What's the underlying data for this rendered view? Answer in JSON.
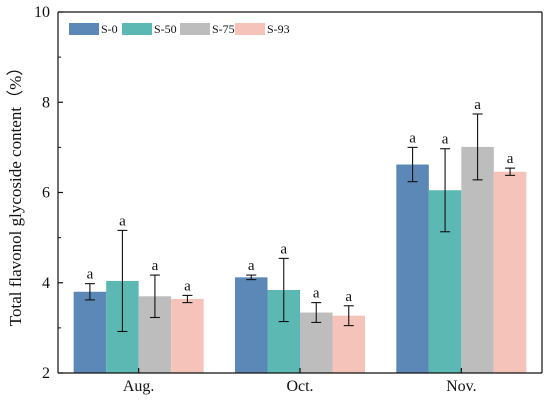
{
  "chart_data": {
    "type": "bar",
    "title": "",
    "xlabel": "",
    "ylabel": "Total flavonol glycoside content（%）",
    "ylim": [
      2,
      10
    ],
    "yticks": [
      2,
      4,
      6,
      8,
      10
    ],
    "categories": [
      "Aug.",
      "Oct.",
      "Nov."
    ],
    "legend": {
      "position": "top-left",
      "orientation": "horizontal"
    },
    "grid": false,
    "series": [
      {
        "name": "S-0",
        "color": "#5b88b6",
        "values": [
          3.8,
          4.12,
          6.62
        ],
        "errors": [
          0.18,
          0.05,
          0.38
        ],
        "labels": [
          "a",
          "a",
          "a"
        ]
      },
      {
        "name": "S-50",
        "color": "#5cb8b2",
        "values": [
          4.04,
          3.84,
          6.05
        ],
        "errors": [
          1.12,
          0.7,
          0.92
        ],
        "labels": [
          "a",
          "a",
          "a"
        ]
      },
      {
        "name": "S-75",
        "color": "#bdbdbd",
        "values": [
          3.7,
          3.34,
          7.01
        ],
        "errors": [
          0.47,
          0.22,
          0.73
        ],
        "labels": [
          "a",
          "a",
          "a"
        ]
      },
      {
        "name": "S-93",
        "color": "#f6c3bb",
        "values": [
          3.64,
          3.27,
          6.46
        ],
        "errors": [
          0.08,
          0.22,
          0.08
        ],
        "labels": [
          "a",
          "a",
          "a"
        ]
      }
    ]
  }
}
